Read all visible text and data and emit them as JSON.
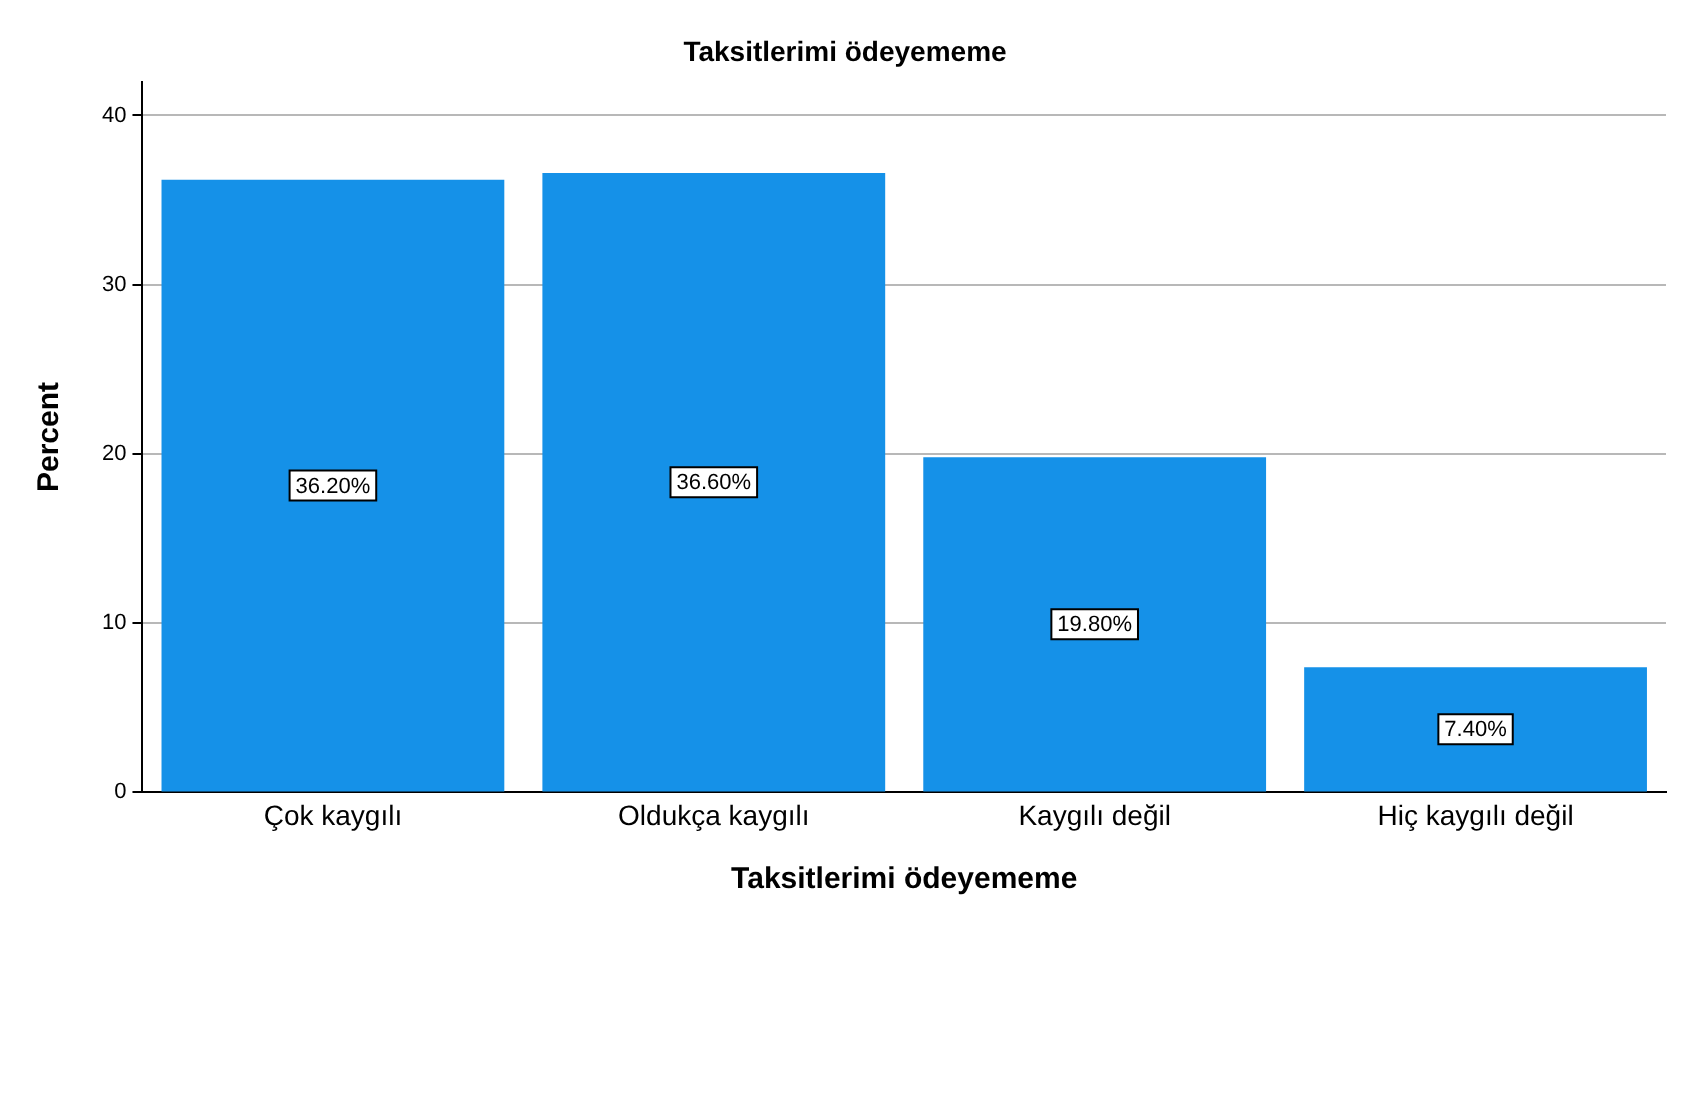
{
  "chart_data": {
    "type": "bar",
    "title": "Taksitlerimi ödeyememe",
    "xlabel": "Taksitlerimi ödeyememe",
    "ylabel": "Percent",
    "categories": [
      "Çok kaygılı",
      "Oldukça kaygılı",
      "Kaygılı değil",
      "Hiç kaygılı değil"
    ],
    "values": [
      36.2,
      36.6,
      19.8,
      7.4
    ],
    "value_labels": [
      "36.20%",
      "36.60%",
      "19.80%",
      "7.40%"
    ],
    "color": "#1591e8",
    "ylim": [
      0,
      42
    ],
    "yticks": [
      0,
      10,
      20,
      30,
      40
    ],
    "grid": "y",
    "legend": false
  }
}
